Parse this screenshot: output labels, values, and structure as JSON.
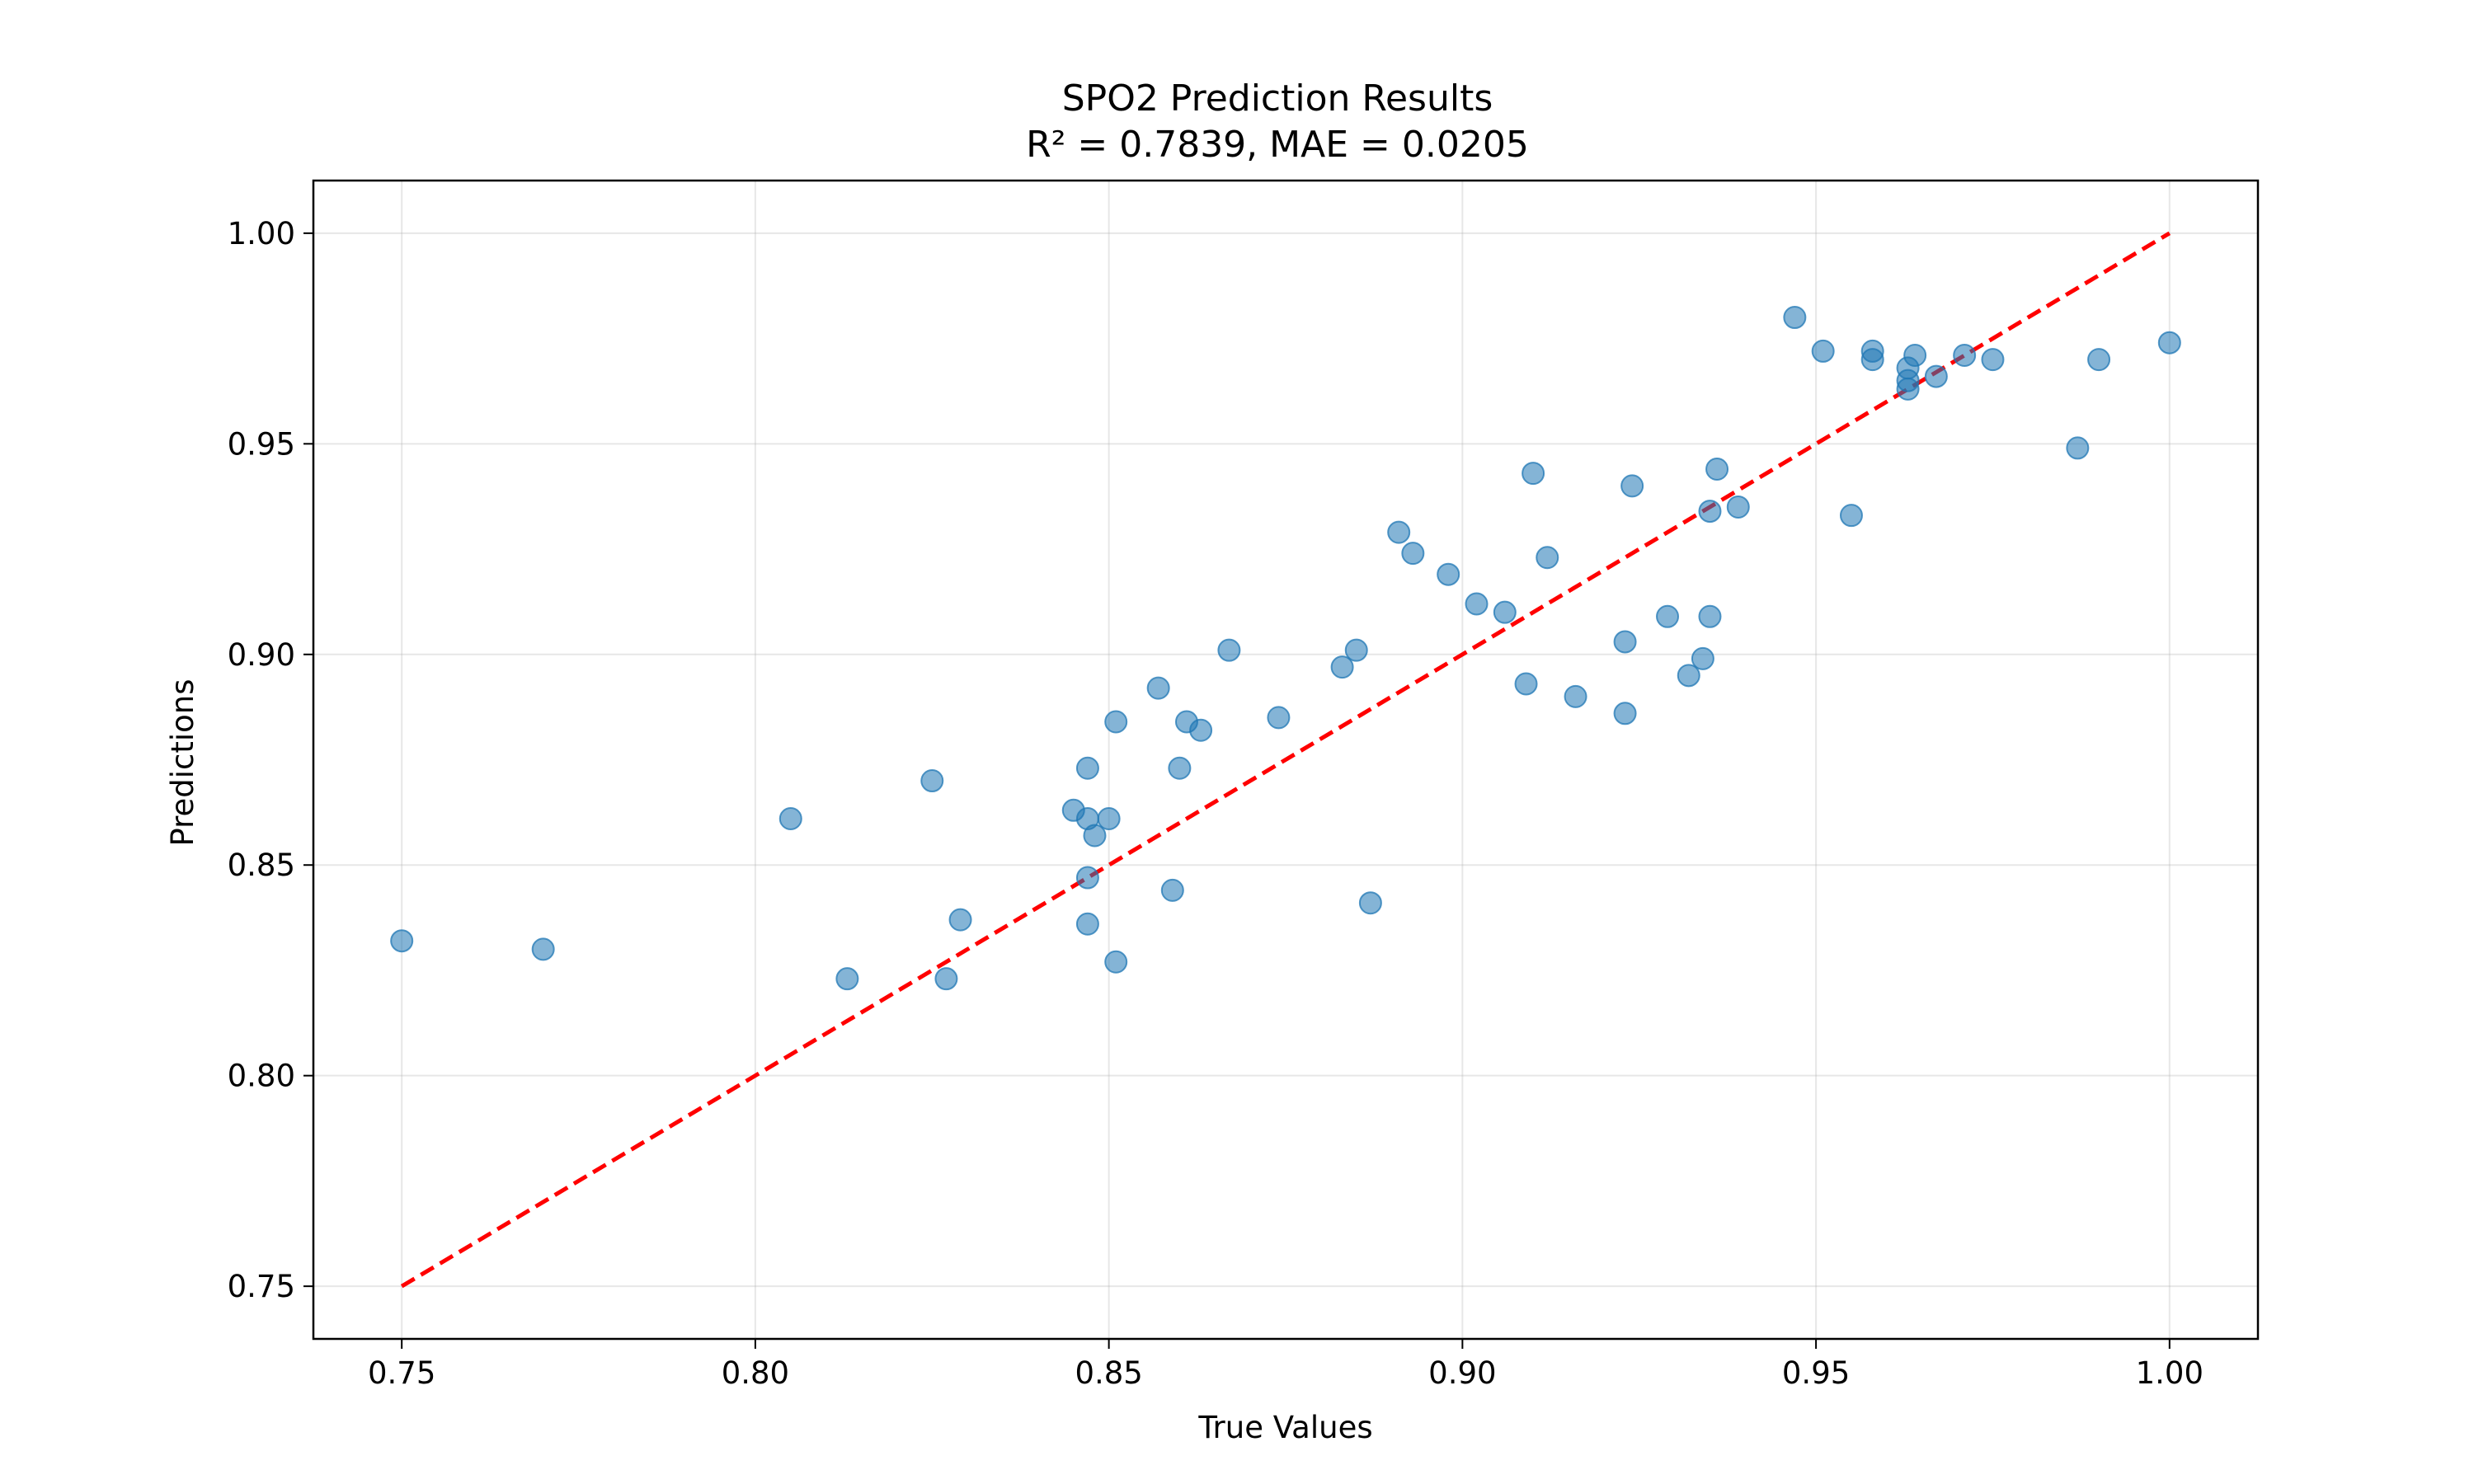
{
  "chart_data": {
    "type": "scatter",
    "title": "SPO2 Prediction Results",
    "subtitle": "R² = 0.7839, MAE = 0.0205",
    "xlabel": "True Values",
    "ylabel": "Predictions",
    "xlim": [
      0.7375,
      1.0125
    ],
    "ylim": [
      0.7375,
      1.0125
    ],
    "xticks": [
      0.75,
      0.8,
      0.85,
      0.9,
      0.95,
      1.0
    ],
    "xtick_labels": [
      "0.75",
      "0.80",
      "0.85",
      "0.90",
      "0.95",
      "1.00"
    ],
    "yticks": [
      0.75,
      0.8,
      0.85,
      0.9,
      0.95,
      1.0
    ],
    "ytick_labels": [
      "0.75",
      "0.80",
      "0.85",
      "0.90",
      "0.95",
      "1.00"
    ],
    "grid": true,
    "point_color": "#1f77b4",
    "line_color": "#ff0000",
    "reference_line": {
      "x": [
        0.75,
        1.0
      ],
      "y": [
        0.75,
        1.0
      ],
      "style": "dashed"
    },
    "points": [
      [
        0.75,
        0.832
      ],
      [
        0.77,
        0.83
      ],
      [
        0.805,
        0.861
      ],
      [
        0.813,
        0.823
      ],
      [
        0.825,
        0.87
      ],
      [
        0.827,
        0.823
      ],
      [
        0.829,
        0.837
      ],
      [
        0.845,
        0.863
      ],
      [
        0.847,
        0.861
      ],
      [
        0.847,
        0.836
      ],
      [
        0.847,
        0.873
      ],
      [
        0.847,
        0.847
      ],
      [
        0.848,
        0.857
      ],
      [
        0.85,
        0.861
      ],
      [
        0.851,
        0.827
      ],
      [
        0.851,
        0.884
      ],
      [
        0.857,
        0.892
      ],
      [
        0.859,
        0.844
      ],
      [
        0.86,
        0.873
      ],
      [
        0.861,
        0.884
      ],
      [
        0.863,
        0.882
      ],
      [
        0.867,
        0.901
      ],
      [
        0.874,
        0.885
      ],
      [
        0.883,
        0.897
      ],
      [
        0.885,
        0.901
      ],
      [
        0.887,
        0.841
      ],
      [
        0.891,
        0.929
      ],
      [
        0.893,
        0.924
      ],
      [
        0.898,
        0.919
      ],
      [
        0.902,
        0.912
      ],
      [
        0.906,
        0.91
      ],
      [
        0.909,
        0.893
      ],
      [
        0.91,
        0.943
      ],
      [
        0.912,
        0.923
      ],
      [
        0.916,
        0.89
      ],
      [
        0.923,
        0.903
      ],
      [
        0.923,
        0.886
      ],
      [
        0.924,
        0.94
      ],
      [
        0.929,
        0.909
      ],
      [
        0.932,
        0.895
      ],
      [
        0.934,
        0.899
      ],
      [
        0.935,
        0.934
      ],
      [
        0.935,
        0.909
      ],
      [
        0.936,
        0.944
      ],
      [
        0.939,
        0.935
      ],
      [
        0.947,
        0.98
      ],
      [
        0.951,
        0.972
      ],
      [
        0.955,
        0.933
      ],
      [
        0.958,
        0.972
      ],
      [
        0.958,
        0.97
      ],
      [
        0.963,
        0.968
      ],
      [
        0.963,
        0.965
      ],
      [
        0.963,
        0.963
      ],
      [
        0.964,
        0.971
      ],
      [
        0.967,
        0.966
      ],
      [
        0.971,
        0.971
      ],
      [
        0.975,
        0.97
      ],
      [
        0.987,
        0.949
      ],
      [
        0.99,
        0.97
      ],
      [
        1.0,
        0.974
      ]
    ]
  }
}
